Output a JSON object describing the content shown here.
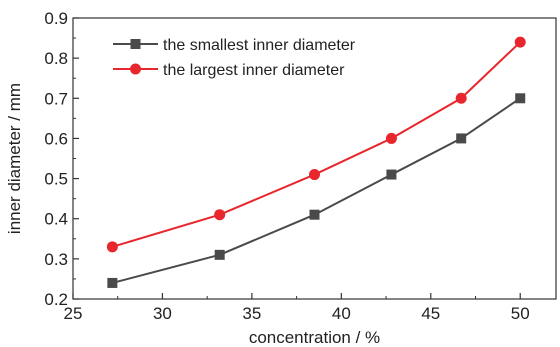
{
  "chart_data": {
    "type": "line",
    "title": "",
    "xlabel": "concentration / %",
    "ylabel": "inner diameter / mm",
    "xlim": [
      25,
      52
    ],
    "ylim": [
      0.2,
      0.9
    ],
    "xticks": [
      25,
      30,
      35,
      40,
      45,
      50
    ],
    "yticks": [
      0.2,
      0.3,
      0.4,
      0.5,
      0.6,
      0.7,
      0.8,
      0.9
    ],
    "grid": false,
    "legend_position": "top-left",
    "series": [
      {
        "name": "the smallest inner diameter",
        "color": "#4a4a4a",
        "marker": "square",
        "x": [
          27.2,
          33.2,
          38.5,
          42.8,
          46.7,
          50.0
        ],
        "y": [
          0.24,
          0.31,
          0.41,
          0.51,
          0.6,
          0.7
        ]
      },
      {
        "name": "the largest inner diameter",
        "color": "#e8262d",
        "marker": "circle",
        "x": [
          27.2,
          33.2,
          38.5,
          42.8,
          46.7,
          50.0
        ],
        "y": [
          0.33,
          0.41,
          0.51,
          0.6,
          0.7,
          0.84
        ]
      }
    ]
  }
}
